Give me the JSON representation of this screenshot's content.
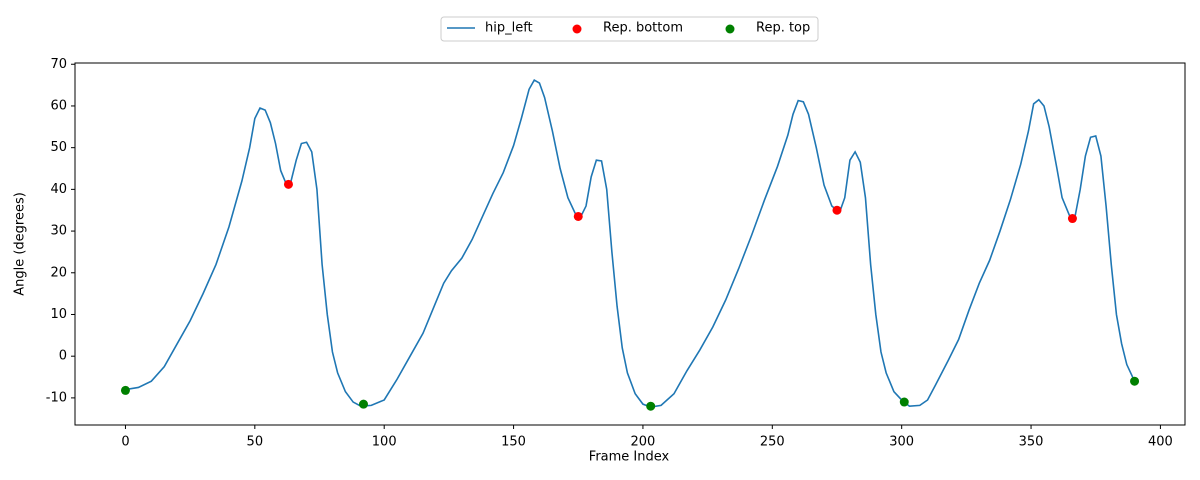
{
  "chart_data": {
    "type": "line",
    "xlabel": "Frame Index",
    "ylabel": "Angle (degrees)",
    "xlim": [
      -19.5,
      409.5
    ],
    "ylim": [
      -16.5,
      70.3
    ],
    "xticks": [
      0,
      50,
      100,
      150,
      200,
      250,
      300,
      350,
      400
    ],
    "yticks": [
      -10,
      0,
      10,
      20,
      30,
      40,
      50,
      60,
      70
    ],
    "legend": "upper center outside",
    "series": [
      {
        "name": "hip_left",
        "color": "#1f77b4",
        "type": "line",
        "x": [
          0,
          5,
          10,
          15,
          20,
          25,
          30,
          35,
          40,
          45,
          48,
          50,
          52,
          54,
          56,
          58,
          60,
          62,
          64,
          66,
          68,
          70,
          72,
          74,
          76,
          78,
          80,
          82,
          85,
          88,
          91,
          95,
          100,
          105,
          110,
          115,
          120,
          123,
          126,
          130,
          134,
          138,
          142,
          146,
          150,
          153,
          156,
          158,
          160,
          162,
          165,
          168,
          171,
          174,
          176,
          178,
          180,
          182,
          184,
          186,
          188,
          190,
          192,
          194,
          197,
          200,
          203,
          207,
          212,
          217,
          222,
          227,
          232,
          237,
          242,
          247,
          252,
          256,
          258,
          260,
          262,
          264,
          267,
          270,
          273,
          276,
          278,
          280,
          282,
          284,
          286,
          288,
          290,
          292,
          294,
          297,
          300,
          303,
          307,
          310,
          313,
          318,
          322,
          326,
          330,
          334,
          338,
          342,
          346,
          349,
          351,
          353,
          355,
          357,
          360,
          362,
          365,
          367,
          369,
          371,
          373,
          375,
          377,
          379,
          381,
          383,
          385,
          387,
          390
        ],
        "values": [
          -8,
          -7.5,
          -6,
          -2.5,
          3,
          8.5,
          15,
          22,
          31,
          42,
          50,
          57,
          59.5,
          59,
          56,
          51,
          44.5,
          41.5,
          42,
          47,
          51,
          51.3,
          49,
          40,
          22,
          10,
          1,
          -4,
          -8.5,
          -11,
          -12,
          -11.8,
          -10.5,
          -5.5,
          0,
          5.5,
          13,
          17.5,
          20.5,
          23.5,
          28,
          33.5,
          39,
          44,
          50.5,
          57,
          64,
          66.2,
          65.5,
          62,
          54,
          45,
          38,
          34,
          33.5,
          36,
          43,
          47,
          46.8,
          40,
          25,
          12,
          2,
          -4,
          -9,
          -11.5,
          -12.2,
          -11.8,
          -9,
          -3.5,
          1.5,
          7,
          13.5,
          21,
          29,
          37.5,
          45.5,
          53,
          58,
          61.3,
          61,
          58,
          50,
          41,
          36,
          34.5,
          38,
          47,
          49,
          46.5,
          38,
          22,
          10,
          1,
          -4,
          -8.5,
          -10.5,
          -12,
          -11.8,
          -10.5,
          -7,
          -1,
          4,
          11,
          17.5,
          23,
          30,
          37.5,
          46,
          54,
          60.5,
          61.5,
          60,
          55,
          45,
          38,
          33.5,
          33.5,
          40,
          48,
          52.5,
          52.8,
          48,
          36,
          22,
          10,
          3,
          -2,
          -6
        ]
      },
      {
        "name": "Rep. bottom",
        "color": "#ff0000",
        "type": "scatter",
        "x": [
          63,
          175,
          275,
          366
        ],
        "values": [
          41.2,
          33.5,
          35,
          33
        ]
      },
      {
        "name": "Rep. top",
        "color": "#008000",
        "type": "scatter",
        "x": [
          0,
          92,
          203,
          301,
          390
        ],
        "values": [
          -8.2,
          -11.5,
          -12,
          -11,
          -6
        ]
      }
    ]
  }
}
